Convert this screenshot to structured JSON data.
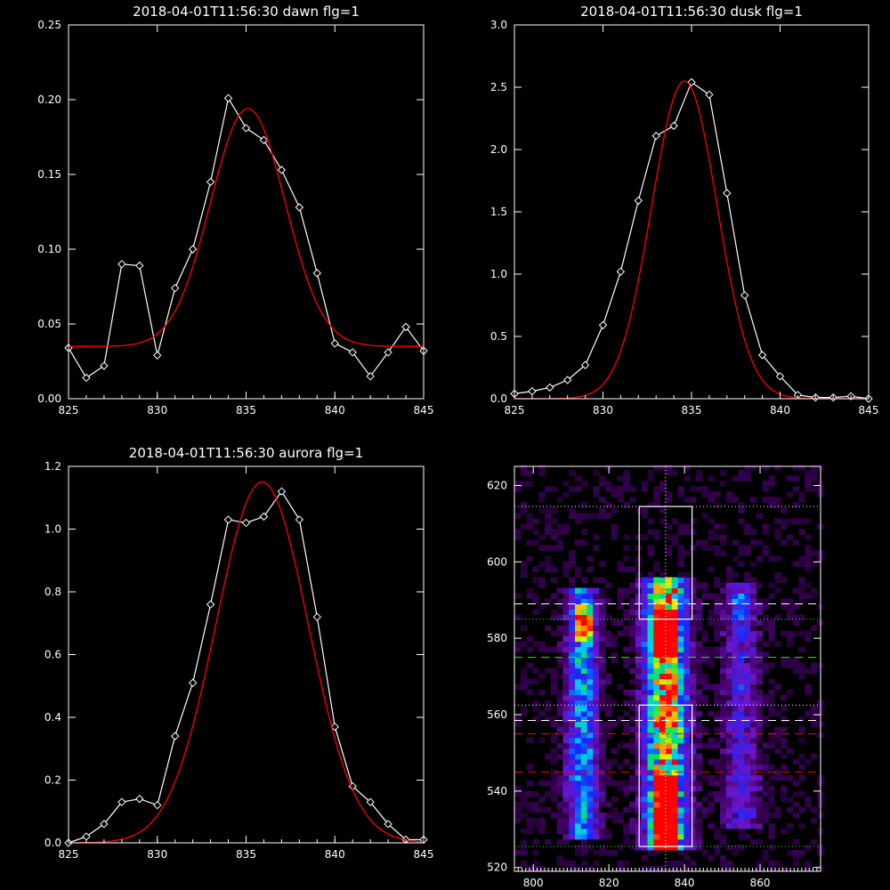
{
  "chart_data": [
    {
      "type": "line",
      "title": "2018-04-01T11:56:30 dawn flg=1",
      "xlim": [
        825,
        845
      ],
      "ylim": [
        0,
        0.25
      ],
      "xticks": [
        825,
        830,
        835,
        840,
        845
      ],
      "yticks": [
        "0.00",
        "0.05",
        "0.10",
        "0.15",
        "0.20",
        "0.25"
      ],
      "series": [
        {
          "color": "#ffffff",
          "marker": "diamond",
          "x": [
            825,
            826,
            827,
            828,
            829,
            830,
            831,
            832,
            833,
            834,
            835,
            836,
            837,
            838,
            839,
            840,
            841,
            842,
            843,
            844,
            845
          ],
          "y": [
            0.034,
            0.014,
            0.022,
            0.09,
            0.089,
            0.029,
            0.074,
            0.1,
            0.145,
            0.201,
            0.181,
            0.173,
            0.153,
            0.128,
            0.084,
            0.037,
            0.031,
            0.015,
            0.031,
            0.048,
            0.032
          ]
        },
        {
          "color": "#ff0000",
          "fit": "gaussian",
          "params": {
            "amplitude": 0.159,
            "center": 835.1,
            "sigma": 2.1,
            "offset": 0.035
          }
        }
      ]
    },
    {
      "type": "line",
      "title": "2018-04-01T11:56:30 dusk flg=1",
      "xlim": [
        825,
        845
      ],
      "ylim": [
        0,
        3.0
      ],
      "xticks": [
        825,
        830,
        835,
        840,
        845
      ],
      "yticks": [
        "0.0",
        "0.5",
        "1.0",
        "1.5",
        "2.0",
        "2.5",
        "3.0"
      ],
      "series": [
        {
          "color": "#ffffff",
          "marker": "diamond",
          "x": [
            825,
            826,
            827,
            828,
            829,
            830,
            831,
            832,
            833,
            834,
            835,
            836,
            837,
            838,
            839,
            840,
            841,
            842,
            843,
            844,
            845
          ],
          "y": [
            0.04,
            0.06,
            0.09,
            0.15,
            0.27,
            0.59,
            1.02,
            1.59,
            2.11,
            2.19,
            2.54,
            2.44,
            1.65,
            0.83,
            0.35,
            0.18,
            0.03,
            0.01,
            0.01,
            0.02,
            0.0
          ]
        },
        {
          "color": "#ff0000",
          "fit": "gaussian",
          "params": {
            "amplitude": 2.55,
            "center": 834.6,
            "sigma": 1.85,
            "offset": 0.0
          }
        }
      ]
    },
    {
      "type": "line",
      "title": "2018-04-01T11:56:30 aurora flg=1",
      "xlim": [
        825,
        845
      ],
      "ylim": [
        0,
        1.2
      ],
      "xticks": [
        825,
        830,
        835,
        840,
        845
      ],
      "yticks": [
        "0.0",
        "0.2",
        "0.4",
        "0.6",
        "0.8",
        "1.0",
        "1.2"
      ],
      "series": [
        {
          "color": "#ffffff",
          "marker": "diamond",
          "x": [
            825,
            826,
            827,
            828,
            829,
            830,
            831,
            832,
            833,
            834,
            835,
            836,
            837,
            838,
            839,
            840,
            841,
            842,
            843,
            844,
            845
          ],
          "y": [
            0.0,
            0.02,
            0.06,
            0.13,
            0.14,
            0.12,
            0.34,
            0.51,
            0.76,
            1.03,
            1.02,
            1.04,
            1.12,
            1.03,
            0.72,
            0.37,
            0.18,
            0.13,
            0.06,
            0.01,
            0.01
          ]
        },
        {
          "color": "#ff0000",
          "fit": "gaussian",
          "params": {
            "amplitude": 1.15,
            "center": 835.9,
            "sigma": 2.6,
            "offset": 0.0
          }
        }
      ]
    },
    {
      "type": "heatmap",
      "title": "",
      "xlim": [
        795,
        876
      ],
      "ylim": [
        519,
        625
      ],
      "xticks": [
        800,
        820,
        840,
        860
      ],
      "yticks": [
        520,
        540,
        560,
        580,
        600,
        620
      ],
      "colormap": "rainbow",
      "emission_columns": [
        {
          "x_center": 813,
          "width": 6,
          "y_from": 527,
          "y_to": 592,
          "peak": 0.55,
          "brightest_y": [
            582,
            585
          ]
        },
        {
          "x_center": 835,
          "width": 8,
          "y_from": 524,
          "y_to": 595,
          "peak": 1.0,
          "brightest_y": [
            578,
            584,
            535,
            540,
            527
          ]
        },
        {
          "x_center": 855,
          "width": 7,
          "y_from": 530,
          "y_to": 594,
          "peak": 0.3,
          "brightest_y": [
            587
          ]
        }
      ],
      "boxes": [
        {
          "x": [
            828,
            842
          ],
          "y": [
            585,
            614.5
          ],
          "color": "#ffffff"
        },
        {
          "x": [
            828,
            842
          ],
          "y": [
            525.5,
            562.5
          ],
          "color": "#ffffff"
        }
      ],
      "vertical_lines": [
        {
          "x": 835,
          "color": "#ffffff",
          "style": "dotted"
        }
      ],
      "horizontal_lines": [
        {
          "y": 614.5,
          "color": "#ffffff",
          "style": "dotted"
        },
        {
          "y": 589,
          "color": "#ffffff",
          "style": "dashed"
        },
        {
          "y": 585,
          "color": "#00ff00",
          "style": "dotted"
        },
        {
          "y": 575,
          "color": "#00ff00",
          "style": "dashed"
        },
        {
          "y": 562.5,
          "color": "#ffffff",
          "style": "dotted"
        },
        {
          "y": 558.5,
          "color": "#ffffff",
          "style": "dashed"
        },
        {
          "y": 555,
          "color": "#ff0000",
          "style": "dashed"
        },
        {
          "y": 545,
          "color": "#ff0000",
          "style": "dashed"
        },
        {
          "y": 525.5,
          "color": "#00ff00",
          "style": "dotted"
        }
      ]
    }
  ]
}
